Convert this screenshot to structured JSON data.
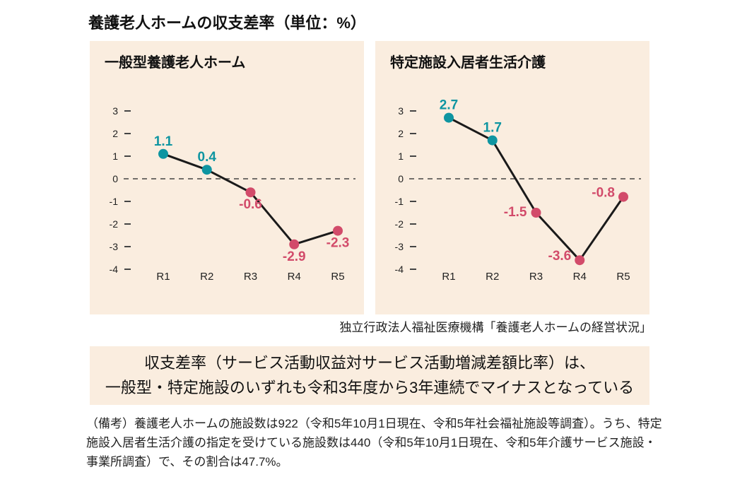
{
  "page": {
    "title": "養護老人ホームの収支差率（単位：%）",
    "source": "独立行政法人福祉医療機構「養護老人ホームの経営状況」",
    "highlight": {
      "line1": "収支差率（サービス活動収益対サービス活動増減差額比率）は、",
      "line2": "一般型・特定施設のいずれも令和3年度から3年連続でマイナスとなっている"
    },
    "note": "（備考）養護老人ホームの施設数は922（令和5年10月1日現在、令和5年社会福祉施設等調査）。うち、特定施設入居者生活介護の指定を受けている施設数は440（令和5年10月1日現在、令和5年介護サービス施設・事業所調査）で、その割合は47.7%。"
  },
  "colors": {
    "positive": "#0e95a1",
    "negative": "#d24b6a",
    "panel_bg": "#faeddf",
    "line": "#1a1a1a",
    "axis_text": "#222222",
    "tick": "#444444"
  },
  "chart_data": [
    {
      "type": "line",
      "title": "一般型養護老人ホーム",
      "categories": [
        "R1",
        "R2",
        "R3",
        "R4",
        "R5"
      ],
      "values": [
        1.1,
        0.4,
        -0.6,
        -2.9,
        -2.3
      ],
      "label_positions": [
        "above",
        "above",
        "below",
        "below",
        "below"
      ],
      "yticks": [
        3,
        2,
        1,
        0,
        -1,
        -2,
        -3,
        -4
      ],
      "ylim": [
        -4,
        3
      ],
      "zero_line": "dashed",
      "grid": false,
      "legend": false,
      "point_color_rule": "positive=teal, negative=rose"
    },
    {
      "type": "line",
      "title": "特定施設入居者生活介護",
      "categories": [
        "R1",
        "R2",
        "R3",
        "R4",
        "R5"
      ],
      "values": [
        2.7,
        1.7,
        -1.5,
        -3.6,
        -0.8
      ],
      "label_positions": [
        "above",
        "above",
        "left",
        "left-above",
        "left-above"
      ],
      "yticks": [
        3,
        2,
        1,
        0,
        -1,
        -2,
        -3,
        -4
      ],
      "ylim": [
        -4,
        3
      ],
      "zero_line": "dashed",
      "grid": false,
      "legend": false,
      "point_color_rule": "positive=teal, negative=rose"
    }
  ]
}
